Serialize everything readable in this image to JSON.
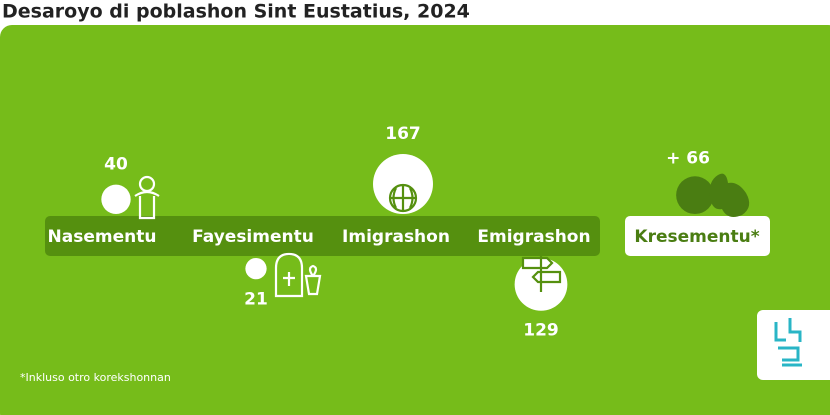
{
  "chart_data": {
    "type": "bubble",
    "title": "Desaroyo di poblashon Sint Eustatius, 2024",
    "categories": [
      "Nasementu",
      "Fayesimentu",
      "Imigrashon",
      "Emigrashon"
    ],
    "values": [
      40,
      21,
      167,
      129
    ],
    "color": "#ffffff",
    "result": {
      "label": "Kresementu*",
      "value": 66,
      "value_label": "+ 66",
      "color": "#4a7d12"
    },
    "footnote": "*Inkluso otro korekshonnan"
  }
}
